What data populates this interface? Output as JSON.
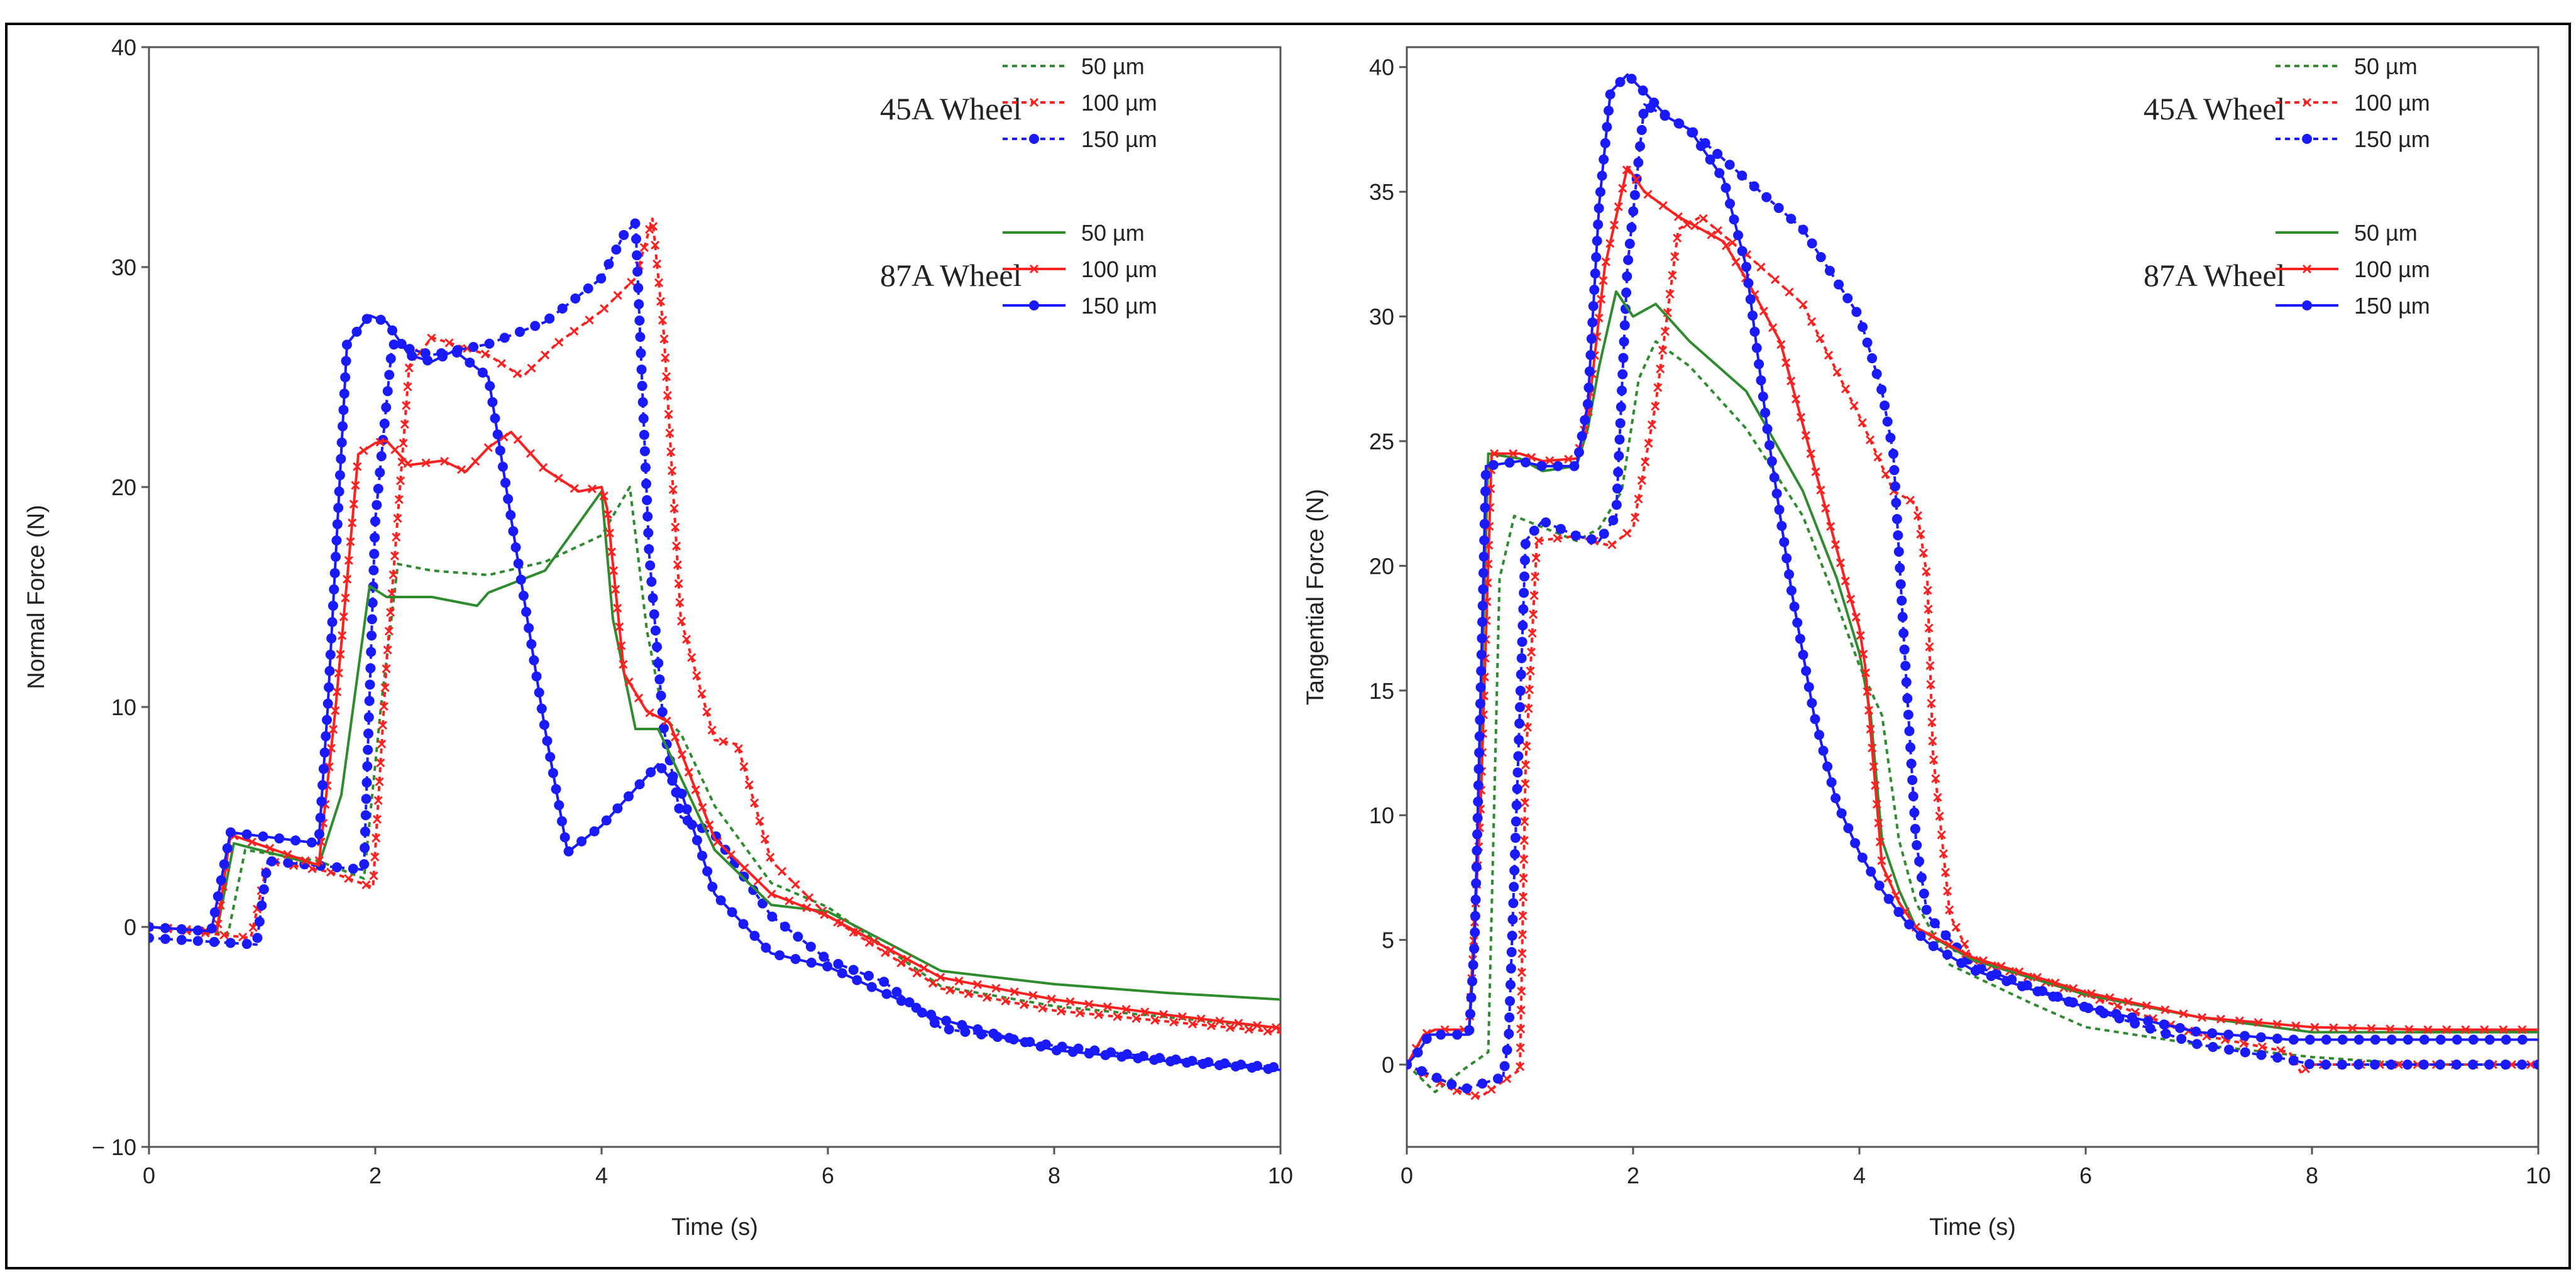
{
  "chart_data": [
    {
      "type": "line",
      "xlabel": "Time (s)",
      "ylabel": "Normal Force (N)",
      "xlim": [
        0,
        10
      ],
      "ylim": [
        -10,
        40
      ],
      "xticks": [
        0,
        2,
        4,
        6,
        8,
        10
      ],
      "yticks": [
        -10,
        0,
        10,
        20,
        30,
        40
      ],
      "ytick_labels": [
        "− 10",
        "0",
        "10",
        "20",
        "30",
        "40"
      ],
      "grid": false,
      "legend": {
        "groups": [
          {
            "title": "45A Wheel",
            "style": "dotted",
            "entries": [
              "50 µm",
              "100 µm",
              "150 µm"
            ]
          },
          {
            "title": "87A Wheel",
            "style": "solid",
            "entries": [
              "50 µm",
              "100 µm",
              "150 µm"
            ]
          }
        ],
        "placement": "top-right"
      },
      "series": [
        {
          "name": "45A Wheel 50 µm",
          "color": "#2e8b2e",
          "dash": "dotted",
          "marker": "none",
          "x": [
            0,
            0.7,
            0.85,
            1.5,
            1.9,
            2.05,
            2.2,
            2.5,
            3.0,
            3.5,
            4.0,
            4.25,
            4.4,
            4.55,
            4.7,
            5.0,
            5.5,
            6.0,
            7.0,
            8.0,
            9.0,
            10.0
          ],
          "y": [
            0,
            -0.3,
            3.5,
            3.0,
            2.2,
            10.0,
            16.5,
            16.2,
            16.0,
            16.6,
            17.8,
            20.0,
            13.5,
            9.5,
            8.8,
            5.5,
            2.0,
            0.9,
            -2.7,
            -3.6,
            -4.1,
            -4.6
          ]
        },
        {
          "name": "45A Wheel 100 µm",
          "color": "#ff2020",
          "dash": "dotted",
          "marker": "x",
          "x": [
            0,
            0.9,
            1.05,
            1.6,
            1.98,
            2.1,
            2.3,
            2.5,
            3.0,
            3.3,
            3.6,
            4.0,
            4.3,
            4.45,
            4.55,
            4.7,
            5.0,
            5.2,
            5.5,
            6.0,
            7.0,
            8.0,
            9.0,
            10.0
          ],
          "y": [
            0,
            -0.5,
            3.0,
            2.5,
            1.8,
            12.0,
            25.5,
            26.8,
            26.0,
            25.0,
            26.5,
            28.0,
            29.5,
            32.2,
            27.0,
            14.0,
            8.5,
            8.3,
            3.0,
            0.5,
            -2.8,
            -3.8,
            -4.3,
            -4.8
          ]
        },
        {
          "name": "45A Wheel 150 µm",
          "color": "#1a1aff",
          "dash": "dotted",
          "marker": "dot",
          "x": [
            0,
            0.95,
            1.05,
            1.9,
            2.0,
            2.15,
            2.5,
            3.0,
            3.5,
            4.0,
            4.2,
            4.3,
            4.42,
            4.55,
            4.7,
            5.0,
            5.5,
            6.0,
            6.5,
            7.0,
            8.0,
            9.0,
            10.0
          ],
          "y": [
            -0.5,
            -0.8,
            3.0,
            2.6,
            18.5,
            26.5,
            26.0,
            26.5,
            27.5,
            29.5,
            31.5,
            32.0,
            17.0,
            9.0,
            5.0,
            4.2,
            0.5,
            -1.5,
            -2.5,
            -4.6,
            -5.4,
            -6.0,
            -6.4
          ]
        },
        {
          "name": "87A Wheel 50 µm",
          "color": "#2e8b2e",
          "dash": "solid",
          "marker": "none",
          "x": [
            0,
            0.6,
            0.75,
            1.5,
            1.7,
            1.95,
            2.1,
            2.5,
            2.9,
            3.0,
            3.5,
            4.0,
            4.1,
            4.3,
            4.5,
            5.0,
            5.5,
            6.0,
            7.0,
            8.0,
            9.0,
            10.0
          ],
          "y": [
            0,
            -0.2,
            3.8,
            2.8,
            6.0,
            15.5,
            15.0,
            15.0,
            14.6,
            15.2,
            16.2,
            19.8,
            14.0,
            9.0,
            9.0,
            3.5,
            1.0,
            0.7,
            -2.0,
            -2.6,
            -3.0,
            -3.3
          ]
        },
        {
          "name": "87A Wheel 100 µm",
          "color": "#ff2020",
          "dash": "solid",
          "marker": "x",
          "x": [
            0,
            0.6,
            0.72,
            1.5,
            1.65,
            1.85,
            2.0,
            2.1,
            2.3,
            2.6,
            2.8,
            3.0,
            3.2,
            3.5,
            3.8,
            4.0,
            4.05,
            4.2,
            4.4,
            4.6,
            5.0,
            5.5,
            6.0,
            7.0,
            8.0,
            9.0,
            10.0
          ],
          "y": [
            0,
            -0.2,
            4.2,
            2.8,
            10.0,
            21.5,
            22.0,
            22.1,
            21.0,
            21.2,
            20.7,
            21.8,
            22.5,
            20.8,
            19.8,
            20.0,
            19.0,
            11.5,
            9.8,
            9.3,
            4.0,
            1.5,
            0.5,
            -2.3,
            -3.3,
            -4.0,
            -4.6
          ]
        },
        {
          "name": "87A Wheel 150 µm",
          "color": "#1a1aff",
          "dash": "solid",
          "marker": "dot",
          "x": [
            0,
            0.55,
            0.72,
            1.5,
            1.58,
            1.75,
            1.95,
            2.1,
            2.3,
            2.5,
            2.7,
            3.0,
            3.5,
            3.7,
            4.0,
            4.5,
            4.7,
            5.0,
            5.5,
            6.0,
            7.0,
            8.0,
            9.0,
            10.0
          ],
          "y": [
            0,
            -0.2,
            4.3,
            3.8,
            10.0,
            26.5,
            27.8,
            27.5,
            26.0,
            25.7,
            26.2,
            25.0,
            9.0,
            3.4,
            4.6,
            7.4,
            6.2,
            1.5,
            -1.2,
            -1.8,
            -4.2,
            -5.6,
            -6.1,
            -6.5
          ]
        }
      ],
      "annotations": []
    },
    {
      "type": "line",
      "xlabel": "Time (s)",
      "ylabel": "Tangential Force (N)",
      "xlim": [
        0,
        10
      ],
      "ylim": [
        -3.3,
        40.8
      ],
      "xticks": [
        0,
        2,
        4,
        6,
        8,
        10
      ],
      "yticks": [
        0,
        5,
        10,
        15,
        20,
        25,
        30,
        35,
        40
      ],
      "ytick_labels": [
        "0",
        "5",
        "10",
        "15",
        "20",
        "25",
        "30",
        "35",
        "40"
      ],
      "grid": false,
      "legend": {
        "groups": [
          {
            "title": "45A Wheel",
            "style": "dotted",
            "entries": [
              "50 µm",
              "100 µm",
              "150 µm"
            ]
          },
          {
            "title": "87A Wheel",
            "style": "solid",
            "entries": [
              "50 µm",
              "100 µm",
              "150 µm"
            ]
          }
        ],
        "placement": "top-right"
      },
      "series": [
        {
          "name": "45A Wheel 50 µm",
          "color": "#2e8b2e",
          "dash": "dotted",
          "marker": "none",
          "x": [
            0,
            0.25,
            0.5,
            0.72,
            0.82,
            0.95,
            1.5,
            1.7,
            1.9,
            2.05,
            2.2,
            2.5,
            3.0,
            3.5,
            3.8,
            4.0,
            4.2,
            4.35,
            4.5,
            4.8,
            5.5,
            6.0,
            7.0,
            8.0,
            9.0,
            10.0
          ],
          "y": [
            0,
            -1.1,
            -0.2,
            0.5,
            19.5,
            22.0,
            21.0,
            21.5,
            23.0,
            27.5,
            29.0,
            28.0,
            25.5,
            22.0,
            18.5,
            16.0,
            14.0,
            9.0,
            6.5,
            4.0,
            2.5,
            1.5,
            0.8,
            0.3,
            0,
            0
          ]
        },
        {
          "name": "45A Wheel 100 µm",
          "color": "#ff2020",
          "dash": "dotted",
          "marker": "x",
          "x": [
            0,
            0.4,
            0.65,
            1.0,
            1.05,
            1.15,
            1.5,
            1.65,
            1.8,
            2.0,
            2.2,
            2.4,
            2.6,
            3.0,
            3.5,
            4.0,
            4.3,
            4.5,
            4.6,
            4.65,
            4.8,
            5.0,
            6.0,
            7.0,
            7.8,
            7.9,
            8.0,
            9.0,
            10.0
          ],
          "y": [
            0,
            -1.0,
            -1.3,
            -0.2,
            12.0,
            21.0,
            21.2,
            21.0,
            20.8,
            21.5,
            26.5,
            33.5,
            34.0,
            32.5,
            30.5,
            26.0,
            23.0,
            22.5,
            19.5,
            12.5,
            6.0,
            4.2,
            2.8,
            1.2,
            0.5,
            -0.3,
            0,
            0,
            0
          ]
        },
        {
          "name": "45A Wheel 150 µm",
          "color": "#1a1aff",
          "dash": "dotted",
          "marker": "dot",
          "x": [
            0,
            0.35,
            0.5,
            0.85,
            0.9,
            1.05,
            1.2,
            1.5,
            1.7,
            1.85,
            1.95,
            2.1,
            2.5,
            3.0,
            3.5,
            4.0,
            4.2,
            4.3,
            4.4,
            4.5,
            4.6,
            5.0,
            6.0,
            7.0,
            7.8,
            8.0,
            9.0,
            10.0
          ],
          "y": [
            0,
            -0.7,
            -1.0,
            -0.5,
            1.0,
            21.0,
            21.8,
            21.2,
            21.0,
            22.0,
            32.0,
            38.5,
            37.5,
            35.5,
            33.5,
            30.0,
            27.0,
            24.5,
            16.5,
            9.0,
            6.0,
            4.0,
            2.3,
            0.8,
            0.2,
            0,
            0,
            0
          ]
        },
        {
          "name": "87A Wheel 50 µm",
          "color": "#2e8b2e",
          "dash": "solid",
          "marker": "none",
          "x": [
            0,
            0.15,
            0.25,
            0.55,
            0.62,
            0.72,
            1.0,
            1.2,
            1.5,
            1.6,
            1.7,
            1.85,
            2.0,
            2.2,
            2.5,
            3.0,
            3.5,
            3.8,
            4.0,
            4.1,
            4.2,
            4.35,
            4.5,
            5.0,
            6.0,
            7.0,
            8.0,
            9.0,
            10.0
          ],
          "y": [
            0,
            1.2,
            1.4,
            1.4,
            8.0,
            24.5,
            24.3,
            23.8,
            24.0,
            25.5,
            28.0,
            31.0,
            30.0,
            30.5,
            29.0,
            27.0,
            23.0,
            19.5,
            16.5,
            14.0,
            9.0,
            7.0,
            5.5,
            4.2,
            2.8,
            1.9,
            1.3,
            1.3,
            1.3
          ]
        },
        {
          "name": "87A Wheel 100 µm",
          "color": "#ff2020",
          "dash": "solid",
          "marker": "x",
          "x": [
            0,
            0.15,
            0.25,
            0.55,
            0.65,
            0.75,
            1.0,
            1.2,
            1.5,
            1.6,
            1.75,
            1.95,
            2.1,
            2.4,
            2.8,
            3.0,
            3.3,
            3.6,
            3.9,
            4.0,
            4.05,
            4.2,
            4.35,
            4.5,
            5.0,
            6.0,
            7.0,
            8.0,
            9.0,
            10.0
          ],
          "y": [
            0,
            1.2,
            1.4,
            1.4,
            10.0,
            24.5,
            24.5,
            24.2,
            24.3,
            26.0,
            32.0,
            36.0,
            35.0,
            34.0,
            33.0,
            31.5,
            29.0,
            24.0,
            19.0,
            17.5,
            16.0,
            8.0,
            6.5,
            5.5,
            4.3,
            2.9,
            1.9,
            1.5,
            1.4,
            1.4
          ]
        },
        {
          "name": "87A Wheel 150 µm",
          "color": "#1a1aff",
          "dash": "solid",
          "marker": "dot",
          "x": [
            0,
            0.1,
            0.2,
            0.55,
            0.6,
            0.7,
            1.0,
            1.2,
            1.5,
            1.6,
            1.7,
            1.8,
            1.95,
            2.1,
            2.3,
            2.5,
            2.8,
            3.0,
            3.2,
            3.4,
            3.6,
            3.8,
            4.0,
            4.2,
            4.4,
            4.6,
            5.0,
            6.0,
            7.0,
            7.8,
            8.0,
            9.0,
            10.0
          ],
          "y": [
            0,
            0.5,
            1.2,
            1.2,
            5.0,
            24.0,
            24.2,
            24.0,
            24.0,
            26.5,
            34.5,
            39.0,
            39.7,
            39.0,
            38.0,
            37.5,
            35.5,
            32.0,
            25.0,
            19.0,
            14.0,
            10.5,
            8.5,
            7.0,
            5.8,
            4.9,
            3.8,
            2.3,
            1.3,
            1.0,
            1.0,
            1.0,
            1.0
          ]
        }
      ],
      "annotations": []
    }
  ]
}
